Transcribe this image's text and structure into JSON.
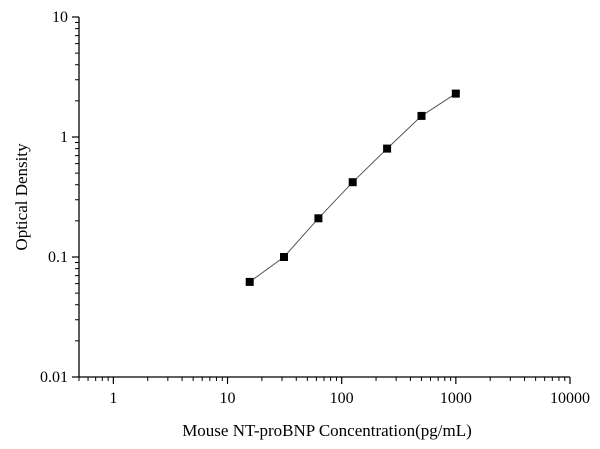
{
  "chart_data": {
    "type": "scatter",
    "title": "",
    "xlabel": "Mouse NT-proBNP Concentration(pg/mL)",
    "ylabel": "Optical Density",
    "xscale": "log",
    "yscale": "log",
    "xlim": [
      0.5,
      10000
    ],
    "ylim": [
      0.01,
      10
    ],
    "xticks": [
      1,
      10,
      100,
      1000,
      10000
    ],
    "xtick_labels": [
      "1",
      "10",
      "100",
      "1000",
      "10000"
    ],
    "yticks": [
      0.01,
      0.1,
      1,
      10
    ],
    "ytick_labels": [
      "0.01",
      "0.1",
      "1",
      "10"
    ],
    "grid": false,
    "legend": "none",
    "series": [
      {
        "x": [
          15.63,
          31.25,
          62.5,
          125,
          250,
          500,
          1000
        ],
        "y": [
          0.062,
          0.1,
          0.21,
          0.42,
          0.8,
          1.5,
          2.3
        ],
        "marker": "square",
        "connected": true,
        "color": "#000000"
      }
    ]
  }
}
